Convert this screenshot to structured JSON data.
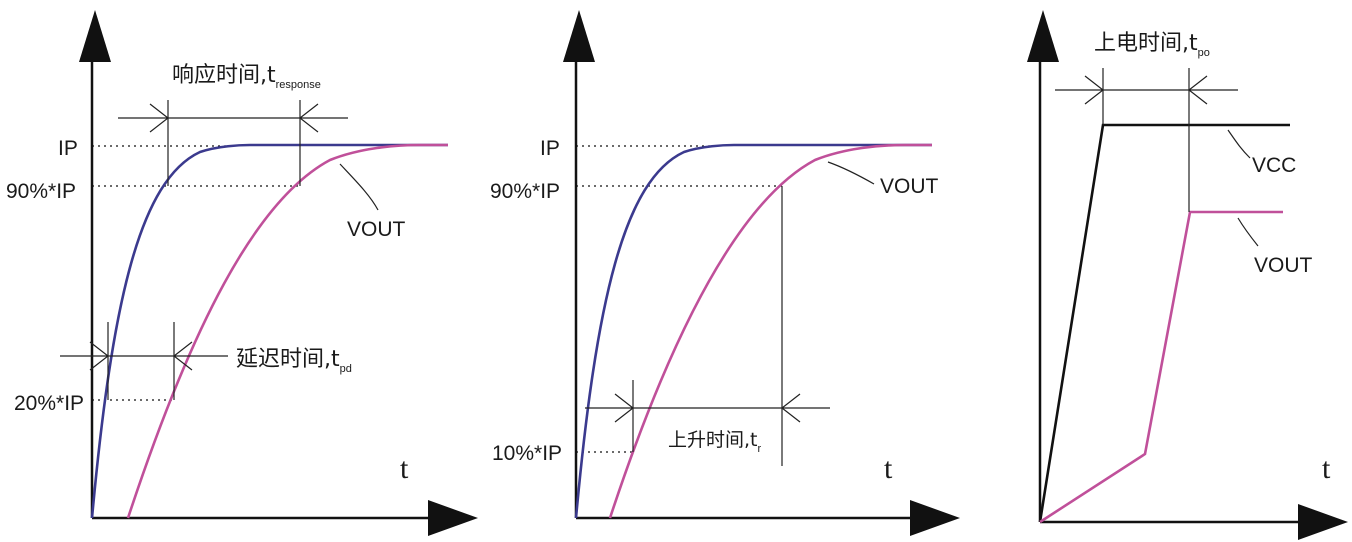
{
  "colors": {
    "input": "#3b3a8e",
    "output": "#c0509a",
    "vcc": "#111111",
    "axis": "#111111"
  },
  "panel_response": {
    "ip_label": "IP",
    "ip90_label": "90%*IP",
    "ip20_label": "20%*IP",
    "vout_label": "VOUT",
    "t_label": "t",
    "response_time": {
      "text": "响应时间,t",
      "sub": "response"
    },
    "delay_time": {
      "text": "延迟时间,t",
      "sub": "pd"
    }
  },
  "panel_rise": {
    "ip_label": "IP",
    "ip90_label": "90%*IP",
    "ip10_label": "10%*IP",
    "vout_label": "VOUT",
    "t_label": "t",
    "rise_time": {
      "text": "上升时间,t",
      "sub": "r"
    }
  },
  "panel_powerup": {
    "vcc_label": "VCC",
    "vout_label": "VOUT",
    "t_label": "t",
    "power_up_time": {
      "text": "上电时间,t",
      "sub": "po"
    }
  }
}
